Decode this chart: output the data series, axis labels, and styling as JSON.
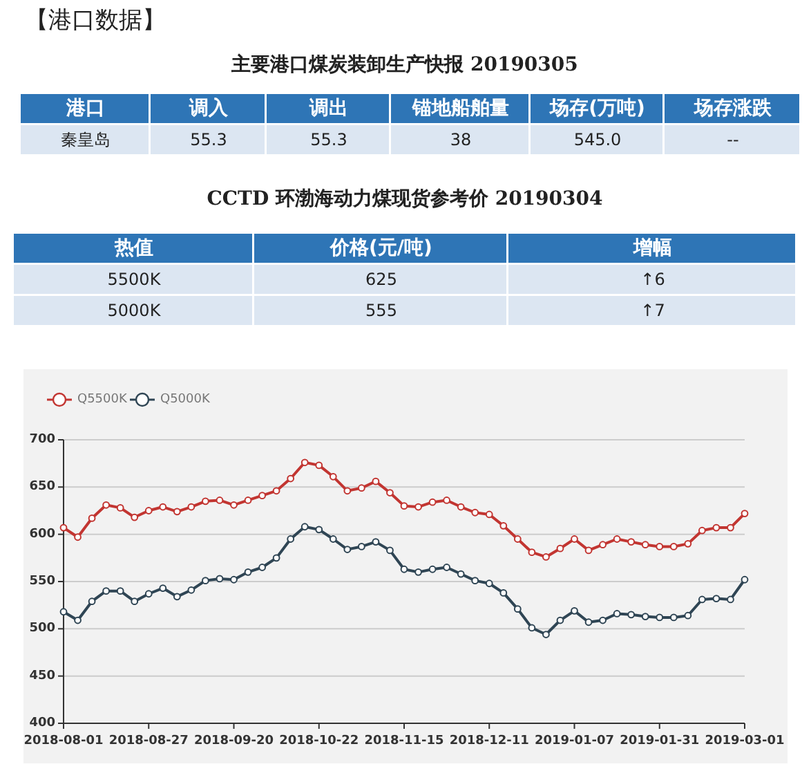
{
  "chart_data": [
    {
      "type": "other",
      "title": "【港口数据】",
      "subtitle": "主要港口煤炭装卸生产快报 20190305",
      "categories": [
        "港口",
        "调入",
        "调出",
        "锚地船舶量",
        "场存(万吨)",
        "场存涨跌"
      ],
      "annotations": [
        "秦皇岛",
        "55.3",
        "55.3",
        "38",
        "545.0",
        "--"
      ]
    },
    {
      "type": "other",
      "title": "CCTD 环渤海动力煤现货参考价 20190304",
      "categories": [
        "热值",
        "价格(元/吨)",
        "增幅"
      ],
      "annotations": [
        "5500K",
        "625",
        "↑6",
        "5000K",
        "555",
        "↑7"
      ]
    },
    {
      "type": "line",
      "categories": [
        "2018-08-01",
        null,
        null,
        null,
        null,
        null,
        "2018-08-27",
        null,
        null,
        null,
        null,
        null,
        "2018-09-20",
        null,
        null,
        null,
        null,
        null,
        "2018-10-22",
        null,
        null,
        null,
        null,
        null,
        "2018-11-15",
        null,
        null,
        null,
        null,
        null,
        "2018-12-11",
        null,
        null,
        null,
        null,
        null,
        "2019-01-07",
        null,
        null,
        null,
        null,
        null,
        "2019-01-31",
        null,
        null,
        null,
        null,
        null,
        "2019-03-01"
      ],
      "series": [
        {
          "name": "Q5500K",
          "color": "#c23531",
          "values": [
            607,
            597,
            617,
            631,
            628,
            618,
            625,
            629,
            624,
            629,
            635,
            636,
            631,
            636,
            641,
            646,
            659,
            676,
            673,
            661,
            646,
            649,
            656,
            644,
            630,
            629,
            634,
            636,
            629,
            623,
            621,
            609,
            595,
            581,
            576,
            585,
            595,
            583,
            589,
            595,
            592,
            589,
            587,
            587,
            590,
            604,
            607,
            607,
            622
          ]
        },
        {
          "name": "Q5000K",
          "color": "#2f4554",
          "values": [
            518,
            509,
            529,
            540,
            540,
            529,
            537,
            543,
            534,
            541,
            551,
            553,
            552,
            560,
            565,
            575,
            595,
            608,
            605,
            595,
            584,
            587,
            592,
            583,
            563,
            560,
            563,
            565,
            558,
            551,
            548,
            538,
            521,
            501,
            494,
            509,
            519,
            507,
            509,
            516,
            515,
            513,
            512,
            512,
            514,
            531,
            532,
            531,
            552
          ]
        }
      ],
      "ylim": [
        400,
        700
      ],
      "yticks": [
        400,
        450,
        500,
        550,
        600,
        650,
        700
      ],
      "grid": "y",
      "legend": "top left",
      "marker": "circle",
      "line_style": "solid"
    }
  ]
}
